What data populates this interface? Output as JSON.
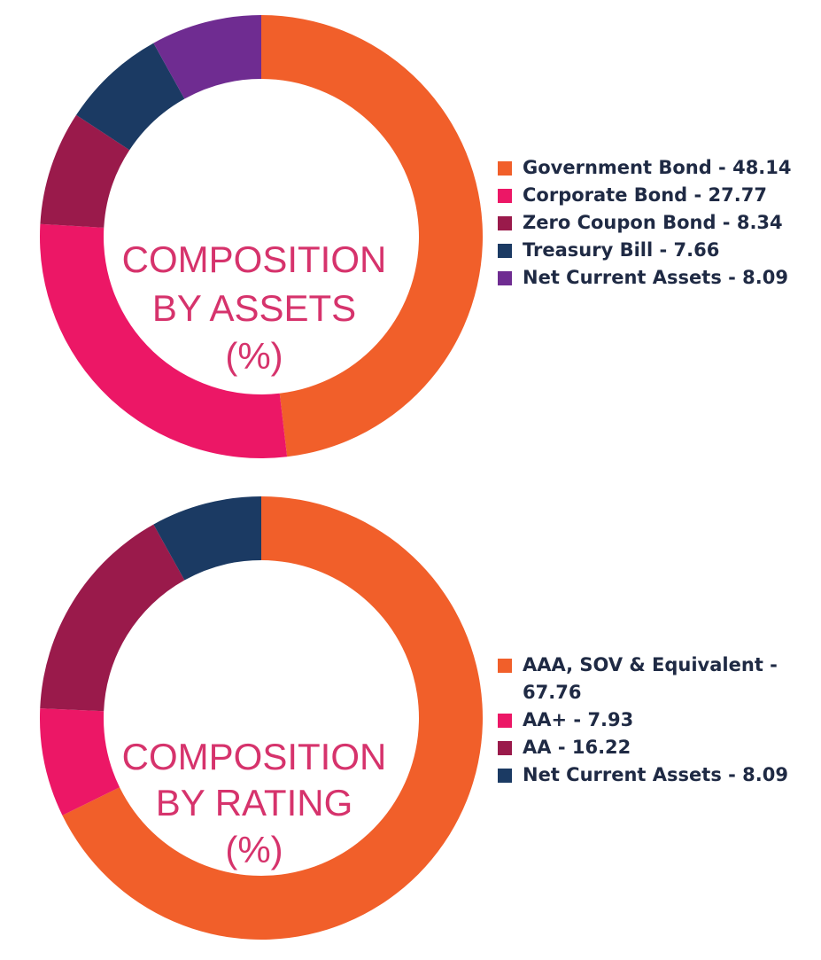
{
  "chart_data": [
    {
      "type": "pie",
      "title_lines": [
        "COMPOSITION",
        "BY ASSETS",
        "(%)"
      ],
      "categories": [
        "Government Bond",
        "Corporate Bond",
        "Zero Coupon Bond",
        "Treasury Bill",
        "Net Current Assets"
      ],
      "values": [
        48.14,
        27.77,
        8.34,
        7.66,
        8.09
      ],
      "colors": [
        "#f15f2a",
        "#ec1766",
        "#9a1a4b",
        "#1b3a63",
        "#6f2c91"
      ],
      "legend_labels": [
        "Government Bond - 48.14",
        "Corporate Bond - 27.77",
        "Zero Coupon Bond - 8.34",
        "Treasury Bill - 7.66",
        "Net Current Assets - 8.09"
      ],
      "legend_position": "right"
    },
    {
      "type": "pie",
      "title_lines": [
        "COMPOSITION",
        "BY RATING",
        "(%)"
      ],
      "categories": [
        "AAA, SOV & Equivalent",
        "AA+",
        "AA",
        "Net Current Assets"
      ],
      "values": [
        67.76,
        7.93,
        16.22,
        8.09
      ],
      "colors": [
        "#f15f2a",
        "#ec1766",
        "#9a1a4b",
        "#1b3a63"
      ],
      "legend_labels": [
        "AAA, SOV & Equivalent - 67.76",
        "AA+ - 7.93",
        "AA - 16.22",
        "Net Current Assets - 8.09"
      ],
      "legend_position": "right"
    }
  ]
}
